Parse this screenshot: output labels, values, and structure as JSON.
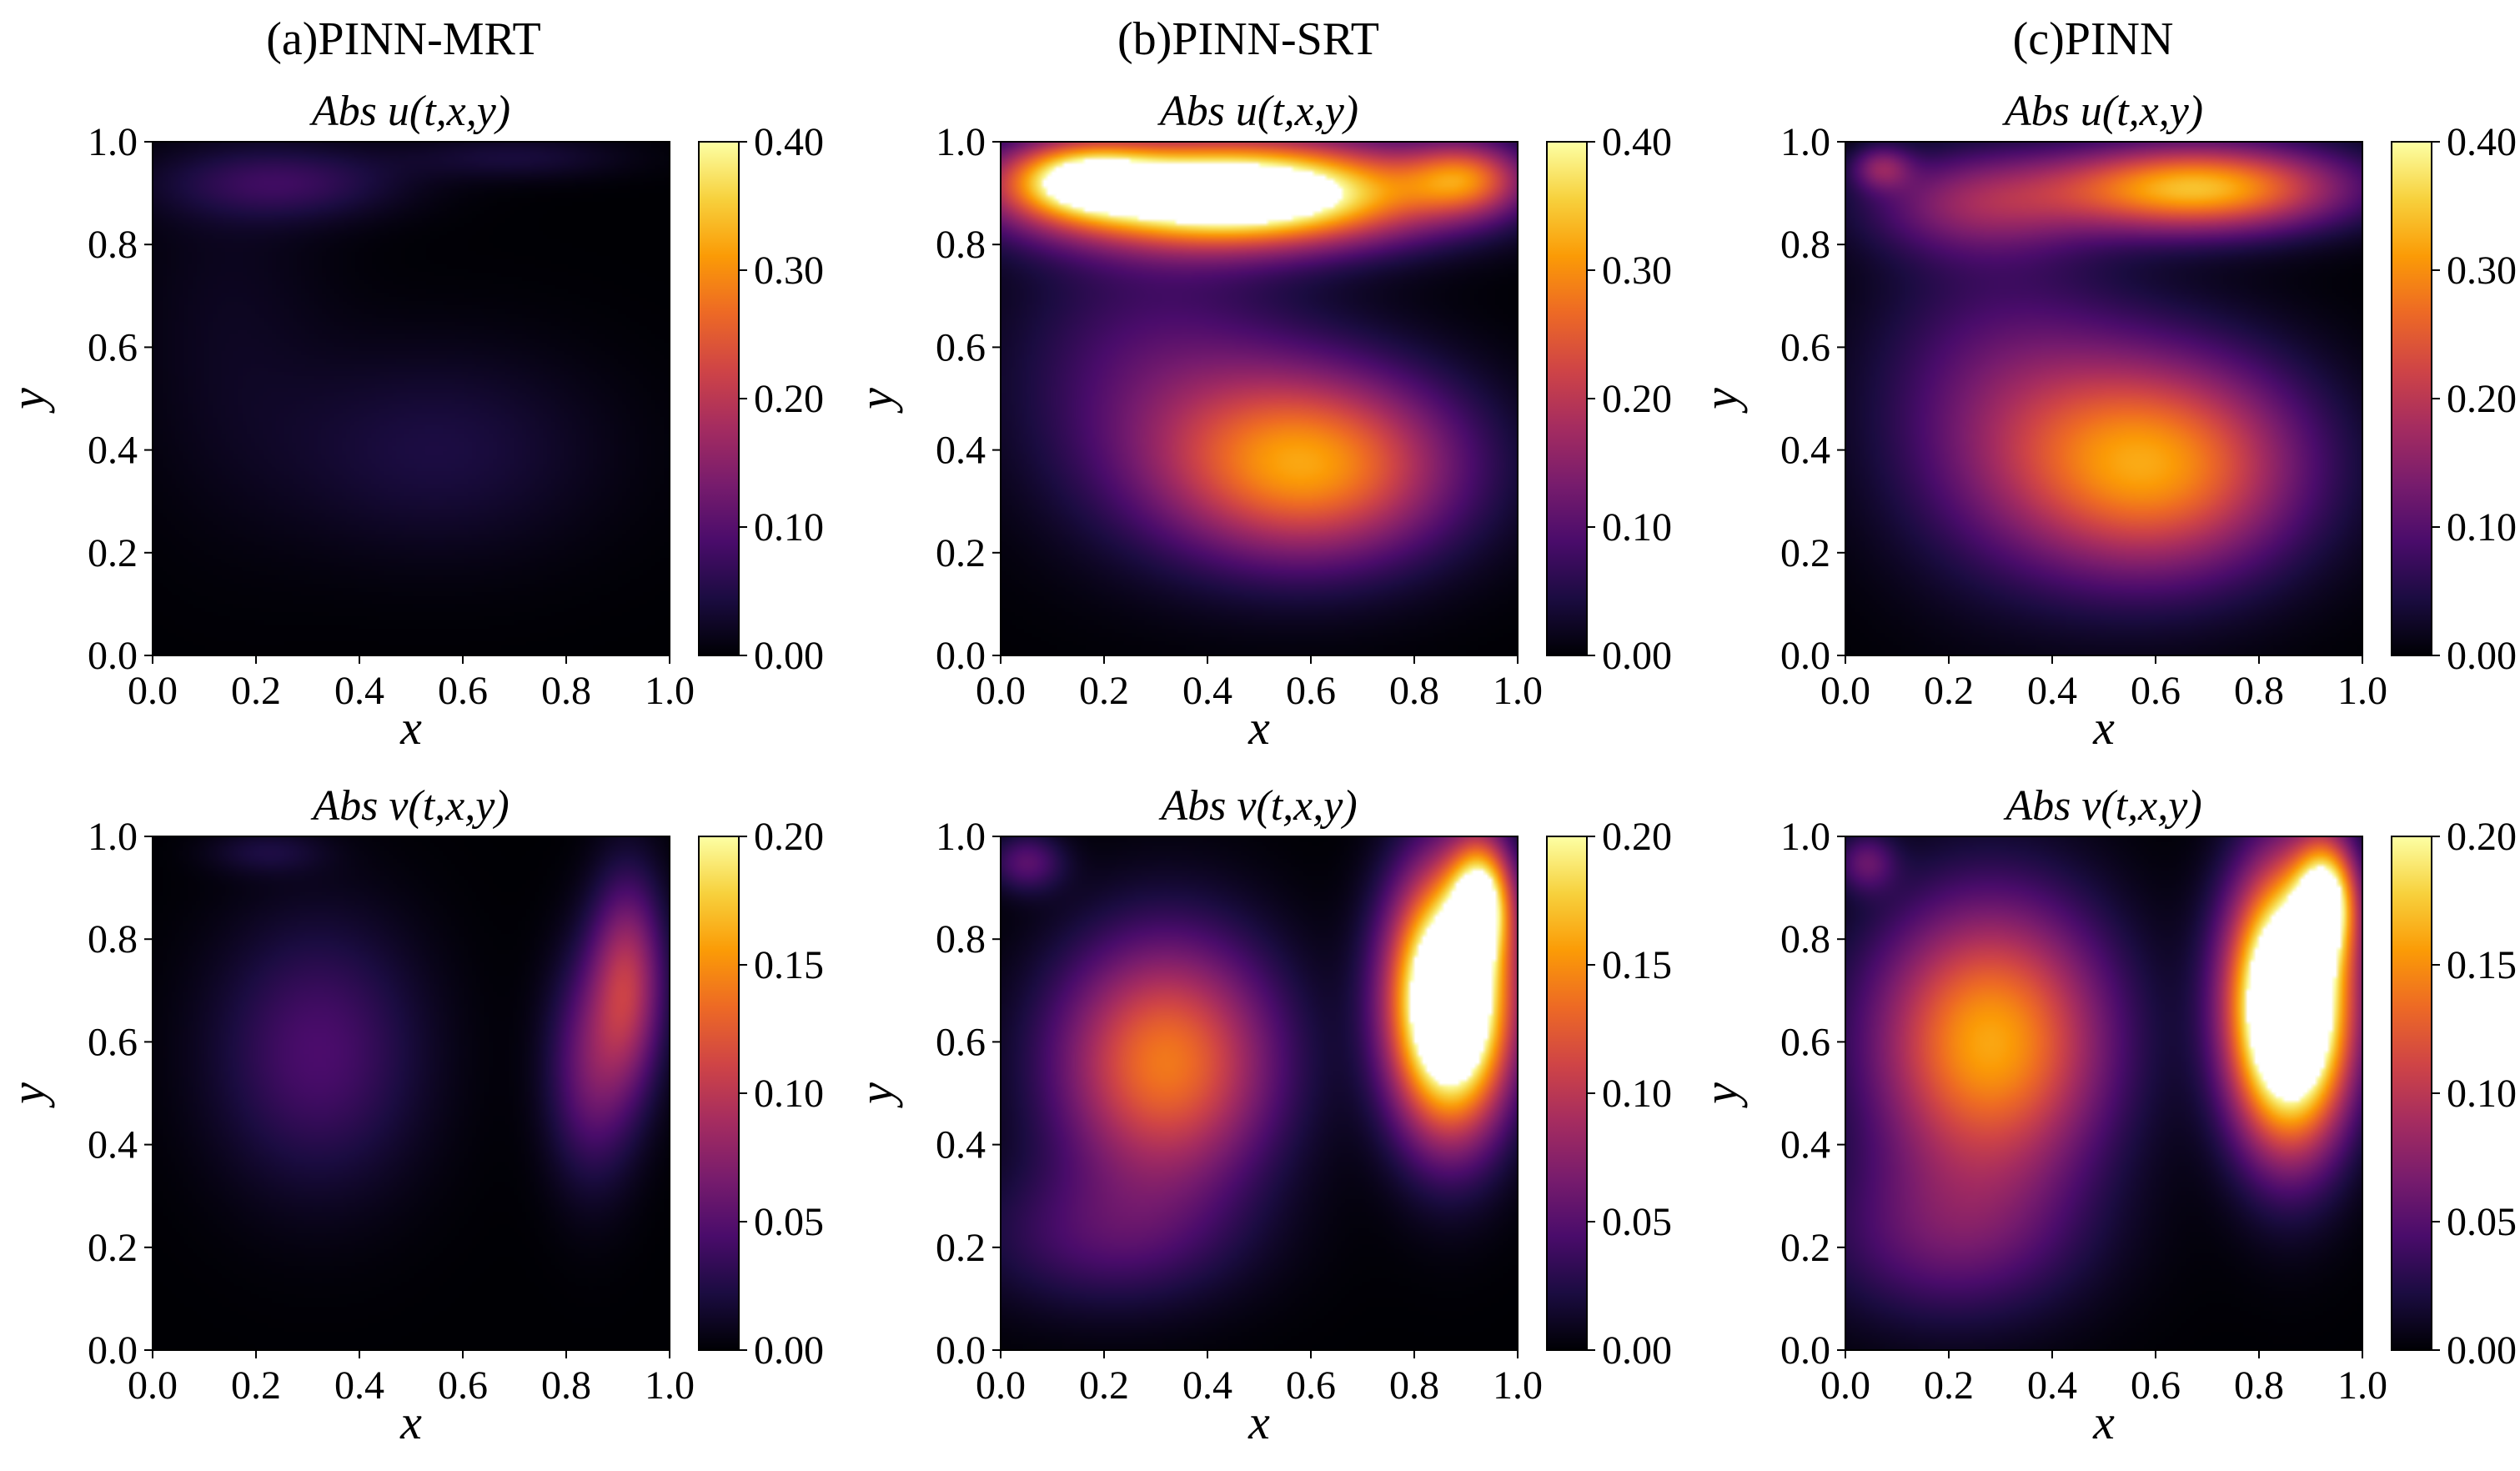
{
  "figure": {
    "column_titles": [
      "(a)PINN-MRT",
      "(b)PINN-SRT",
      "(c)PINN"
    ],
    "colormap": "inferno",
    "colormap_stops": [
      "#000004",
      "#1b0c41",
      "#4a0c6b",
      "#781c6d",
      "#a52c60",
      "#cf4446",
      "#ed6925",
      "#fb9b06",
      "#f7d13d",
      "#fcffa4"
    ]
  },
  "chart_data": [
    {
      "type": "heatmap",
      "id": "mrt-u",
      "column": "(a)PINN-MRT",
      "row": "u",
      "title": "Abs u(t,x,y)",
      "xlabel": "x",
      "ylabel": "y",
      "xlim": [
        0,
        1
      ],
      "ylim": [
        0,
        1
      ],
      "xticks": [
        "0.0",
        "0.2",
        "0.4",
        "0.6",
        "0.8",
        "1.0"
      ],
      "yticks": [
        "0.0",
        "0.2",
        "0.4",
        "0.6",
        "0.8",
        "1.0"
      ],
      "colorbar": {
        "range": [
          0,
          0.4
        ],
        "ticks": [
          "0.00",
          "0.10",
          "0.20",
          "0.30",
          "0.40"
        ]
      },
      "blobs": [
        {
          "x": 0.25,
          "y": 0.92,
          "sx": 0.16,
          "sy": 0.05,
          "v": 0.07
        },
        {
          "x": 0.7,
          "y": 0.97,
          "sx": 0.15,
          "sy": 0.03,
          "v": 0.04
        },
        {
          "x": 0.55,
          "y": 0.4,
          "sx": 0.22,
          "sy": 0.14,
          "v": 0.045
        },
        {
          "x": 0.15,
          "y": 0.65,
          "sx": 0.14,
          "sy": 0.25,
          "v": 0.02
        }
      ]
    },
    {
      "type": "heatmap",
      "id": "srt-u",
      "column": "(b)PINN-SRT",
      "row": "u",
      "title": "Abs u(t,x,y)",
      "xlabel": "x",
      "ylabel": "y",
      "xlim": [
        0,
        1
      ],
      "ylim": [
        0,
        1
      ],
      "xticks": [
        "0.0",
        "0.2",
        "0.4",
        "0.6",
        "0.8",
        "1.0"
      ],
      "yticks": [
        "0.0",
        "0.2",
        "0.4",
        "0.6",
        "0.8",
        "1.0"
      ],
      "colorbar": {
        "range": [
          0,
          0.4
        ],
        "ticks": [
          "0.00",
          "0.10",
          "0.20",
          "0.30",
          "0.40"
        ]
      },
      "blobs": [
        {
          "x": 0.45,
          "y": 0.9,
          "sx": 0.26,
          "sy": 0.07,
          "v": 0.55
        },
        {
          "x": 0.15,
          "y": 0.93,
          "sx": 0.1,
          "sy": 0.05,
          "v": 0.25
        },
        {
          "x": 0.9,
          "y": 0.93,
          "sx": 0.08,
          "sy": 0.05,
          "v": 0.2
        },
        {
          "x": 0.6,
          "y": 0.37,
          "sx": 0.2,
          "sy": 0.13,
          "v": 0.3
        },
        {
          "x": 0.3,
          "y": 0.55,
          "sx": 0.2,
          "sy": 0.2,
          "v": 0.09
        }
      ]
    },
    {
      "type": "heatmap",
      "id": "pinn-u",
      "column": "(c)PINN",
      "row": "u",
      "title": "Abs u(t,x,y)",
      "xlabel": "x",
      "ylabel": "y",
      "xlim": [
        0,
        1
      ],
      "ylim": [
        0,
        1
      ],
      "xticks": [
        "0.0",
        "0.2",
        "0.4",
        "0.6",
        "0.8",
        "1.0"
      ],
      "yticks": [
        "0.0",
        "0.2",
        "0.4",
        "0.6",
        "0.8",
        "1.0"
      ],
      "colorbar": {
        "range": [
          0,
          0.4
        ],
        "ticks": [
          "0.00",
          "0.10",
          "0.20",
          "0.30",
          "0.40"
        ]
      },
      "blobs": [
        {
          "x": 0.68,
          "y": 0.91,
          "sx": 0.2,
          "sy": 0.06,
          "v": 0.34
        },
        {
          "x": 0.25,
          "y": 0.88,
          "sx": 0.15,
          "sy": 0.07,
          "v": 0.13
        },
        {
          "x": 0.6,
          "y": 0.37,
          "sx": 0.2,
          "sy": 0.15,
          "v": 0.3
        },
        {
          "x": 0.3,
          "y": 0.5,
          "sx": 0.18,
          "sy": 0.22,
          "v": 0.1
        },
        {
          "x": 0.07,
          "y": 0.95,
          "sx": 0.04,
          "sy": 0.03,
          "v": 0.12
        }
      ]
    },
    {
      "type": "heatmap",
      "id": "mrt-v",
      "column": "(a)PINN-MRT",
      "row": "v",
      "title": "Abs v(t,x,y)",
      "xlabel": "x",
      "ylabel": "y",
      "xlim": [
        0,
        1
      ],
      "ylim": [
        0,
        1
      ],
      "xticks": [
        "0.0",
        "0.2",
        "0.4",
        "0.6",
        "0.8",
        "1.0"
      ],
      "yticks": [
        "0.0",
        "0.2",
        "0.4",
        "0.6",
        "0.8",
        "1.0"
      ],
      "colorbar": {
        "range": [
          0,
          0.2
        ],
        "ticks": [
          "0.00",
          "0.05",
          "0.10",
          "0.15",
          "0.20"
        ]
      },
      "blobs": [
        {
          "x": 0.32,
          "y": 0.58,
          "sx": 0.14,
          "sy": 0.18,
          "v": 0.045
        },
        {
          "x": 0.92,
          "y": 0.72,
          "sx": 0.05,
          "sy": 0.14,
          "v": 0.09
        },
        {
          "x": 0.85,
          "y": 0.55,
          "sx": 0.06,
          "sy": 0.15,
          "v": 0.06
        },
        {
          "x": 0.22,
          "y": 0.97,
          "sx": 0.08,
          "sy": 0.03,
          "v": 0.02
        }
      ]
    },
    {
      "type": "heatmap",
      "id": "srt-v",
      "column": "(b)PINN-SRT",
      "row": "v",
      "title": "Abs v(t,x,y)",
      "xlabel": "x",
      "ylabel": "y",
      "xlim": [
        0,
        1
      ],
      "ylim": [
        0,
        1
      ],
      "xticks": [
        "0.0",
        "0.2",
        "0.4",
        "0.6",
        "0.8",
        "1.0"
      ],
      "yticks": [
        "0.0",
        "0.2",
        "0.4",
        "0.6",
        "0.8",
        "1.0"
      ],
      "colorbar": {
        "range": [
          0,
          0.2
        ],
        "ticks": [
          "0.00",
          "0.05",
          "0.10",
          "0.15",
          "0.20"
        ]
      },
      "blobs": [
        {
          "x": 0.32,
          "y": 0.56,
          "sx": 0.15,
          "sy": 0.17,
          "v": 0.14
        },
        {
          "x": 0.87,
          "y": 0.68,
          "sx": 0.08,
          "sy": 0.17,
          "v": 0.32
        },
        {
          "x": 0.93,
          "y": 0.88,
          "sx": 0.04,
          "sy": 0.08,
          "v": 0.15
        },
        {
          "x": 0.2,
          "y": 0.22,
          "sx": 0.18,
          "sy": 0.1,
          "v": 0.04
        },
        {
          "x": 0.05,
          "y": 0.95,
          "sx": 0.05,
          "sy": 0.04,
          "v": 0.05
        }
      ]
    },
    {
      "type": "heatmap",
      "id": "pinn-v",
      "column": "(c)PINN",
      "row": "v",
      "title": "Abs v(t,x,y)",
      "xlabel": "x",
      "ylabel": "y",
      "xlim": [
        0,
        1
      ],
      "ylim": [
        0,
        1
      ],
      "xticks": [
        "0.0",
        "0.2",
        "0.4",
        "0.6",
        "0.8",
        "1.0"
      ],
      "yticks": [
        "0.0",
        "0.2",
        "0.4",
        "0.6",
        "0.8",
        "1.0"
      ],
      "colorbar": {
        "range": [
          0,
          0.2
        ],
        "ticks": [
          "0.00",
          "0.05",
          "0.10",
          "0.15",
          "0.20"
        ]
      },
      "blobs": [
        {
          "x": 0.28,
          "y": 0.6,
          "sx": 0.16,
          "sy": 0.19,
          "v": 0.16
        },
        {
          "x": 0.86,
          "y": 0.67,
          "sx": 0.08,
          "sy": 0.18,
          "v": 0.34
        },
        {
          "x": 0.93,
          "y": 0.88,
          "sx": 0.04,
          "sy": 0.08,
          "v": 0.16
        },
        {
          "x": 0.2,
          "y": 0.22,
          "sx": 0.18,
          "sy": 0.12,
          "v": 0.05
        },
        {
          "x": 0.04,
          "y": 0.95,
          "sx": 0.04,
          "sy": 0.04,
          "v": 0.05
        }
      ]
    }
  ]
}
